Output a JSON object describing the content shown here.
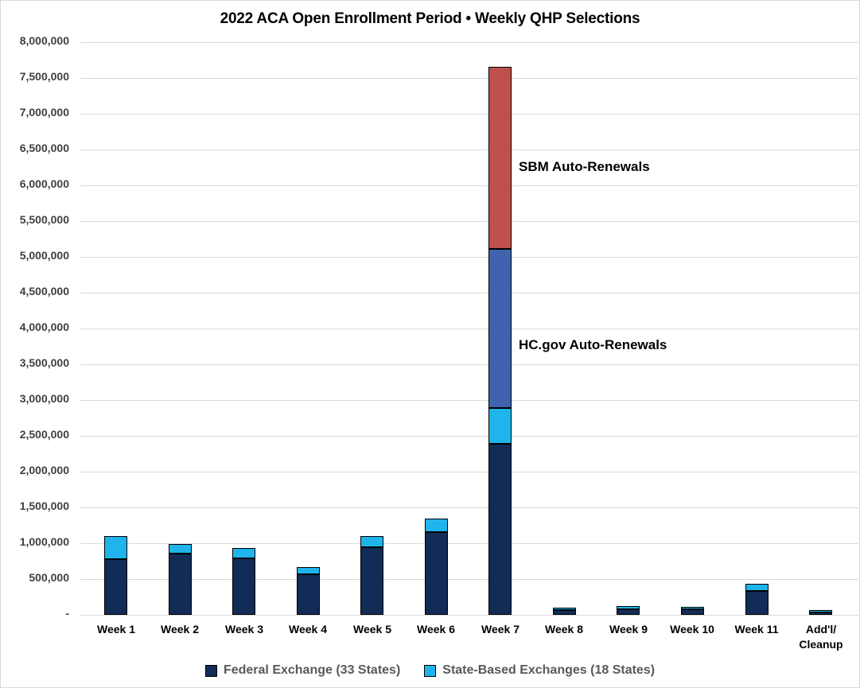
{
  "title": "2022 ACA Open Enrollment Period • Weekly QHP Selections",
  "annotations": {
    "sbm": "SBM Auto-Renewals",
    "hcgov": "HC.gov Auto-Renewals"
  },
  "legend": [
    {
      "label": "Federal Exchange (33 States)",
      "color": "#122c57"
    },
    {
      "label": "State-Based Exchanges (18 States)",
      "color": "#1fb4eb"
    }
  ],
  "colors": {
    "federal_navy": "#122c57",
    "state_based_cyan": "#1fb4eb",
    "hcgov_auto_blue": "#3f64ad",
    "sbm_auto_red": "#c0504d",
    "gridline": "#d9d9d9",
    "axis_text": "#3f3f3f",
    "legend_text": "#595959"
  },
  "chart_data": {
    "type": "bar",
    "stacked": true,
    "title": "2022 ACA Open Enrollment Period • Weekly QHP Selections",
    "xlabel": "",
    "ylabel": "",
    "ylim": [
      0,
      8000000
    ],
    "ytick_step": 500000,
    "grid": true,
    "legend_position": "bottom",
    "categories": [
      "Week 1",
      "Week 2",
      "Week 3",
      "Week 4",
      "Week 5",
      "Week 6",
      "Week 7",
      "Week 8",
      "Week 9",
      "Week 10",
      "Week 11",
      "Add'l/\nCleanup"
    ],
    "series": [
      {
        "name": "Federal Exchange (33 States)",
        "color": "#122c57",
        "values": [
          780000,
          850000,
          790000,
          565000,
          945000,
          1155000,
          2390000,
          70000,
          80000,
          80000,
          330000,
          15000
        ]
      },
      {
        "name": "State-Based Exchanges (18 States)",
        "color": "#1fb4eb",
        "values": [
          320000,
          130000,
          145000,
          105000,
          150000,
          190000,
          500000,
          10000,
          45000,
          10000,
          95000,
          15000
        ]
      },
      {
        "name": "HC.gov Auto-Renewals",
        "color": "#3f64ad",
        "values": [
          0,
          0,
          0,
          0,
          0,
          0,
          2220000,
          0,
          0,
          0,
          0,
          0
        ]
      },
      {
        "name": "SBM Auto-Renewals",
        "color": "#c0504d",
        "values": [
          0,
          0,
          0,
          0,
          0,
          0,
          2550000,
          0,
          0,
          0,
          0,
          0
        ]
      }
    ],
    "ytick_labels": [
      "-",
      "500,000",
      "1,000,000",
      "1,500,000",
      "2,000,000",
      "2,500,000",
      "3,000,000",
      "3,500,000",
      "4,000,000",
      "4,500,000",
      "5,000,000",
      "5,500,000",
      "6,000,000",
      "6,500,000",
      "7,000,000",
      "7,500,000",
      "8,000,000"
    ],
    "annotations": [
      {
        "text": "SBM Auto-Renewals",
        "target_series": "SBM Auto-Renewals",
        "target_category": "Week 7"
      },
      {
        "text": "HC.gov Auto-Renewals",
        "target_series": "HC.gov Auto-Renewals",
        "target_category": "Week 7"
      }
    ]
  }
}
